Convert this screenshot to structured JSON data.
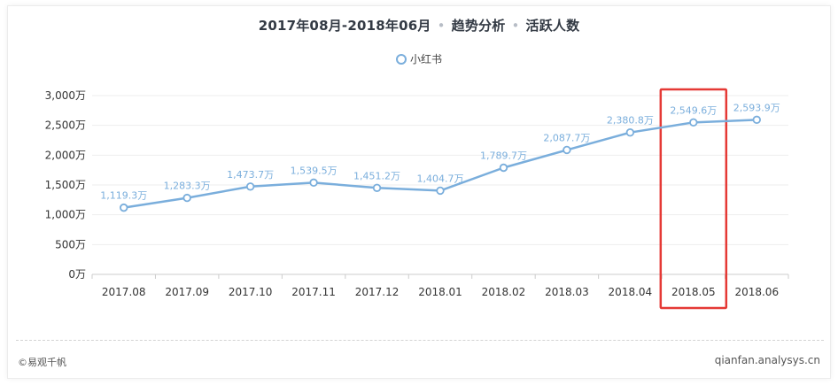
{
  "header": {
    "date_range": "2017年08月-2018年06月",
    "category": "趋势分析",
    "metric": "活跃人数"
  },
  "footer": {
    "copyright": "©易观千帆",
    "site": "qianfan.analysys.cn"
  },
  "highlight": {
    "category": "2018.05",
    "color": "#e53935"
  },
  "chart_data": {
    "type": "line",
    "categories": [
      "2017.08",
      "2017.09",
      "2017.10",
      "2017.11",
      "2017.12",
      "2018.01",
      "2018.02",
      "2018.03",
      "2018.04",
      "2018.05",
      "2018.06"
    ],
    "series": [
      {
        "name": "小红书",
        "values": [
          1119.3,
          1283.3,
          1473.7,
          1539.5,
          1451.2,
          1404.7,
          1789.7,
          2087.7,
          2380.8,
          2549.6,
          2593.9
        ],
        "labels": [
          "1,119.3万",
          "1,283.3万",
          "1,473.7万",
          "1,539.5万",
          "1,451.2万",
          "1,404.7万",
          "1,789.7万",
          "2,087.7万",
          "2,380.8万",
          "2,549.6万",
          "2,593.9万"
        ],
        "color": "#7aaedc"
      }
    ],
    "yticks": [
      0,
      500,
      1000,
      1500,
      2000,
      2500,
      3000
    ],
    "ytick_labels": [
      "0万",
      "500万",
      "1,000万",
      "1,500万",
      "2,000万",
      "2,500万",
      "3,000万"
    ],
    "ylim": [
      0,
      3000
    ],
    "grid": true,
    "legend_position": "top-center"
  }
}
